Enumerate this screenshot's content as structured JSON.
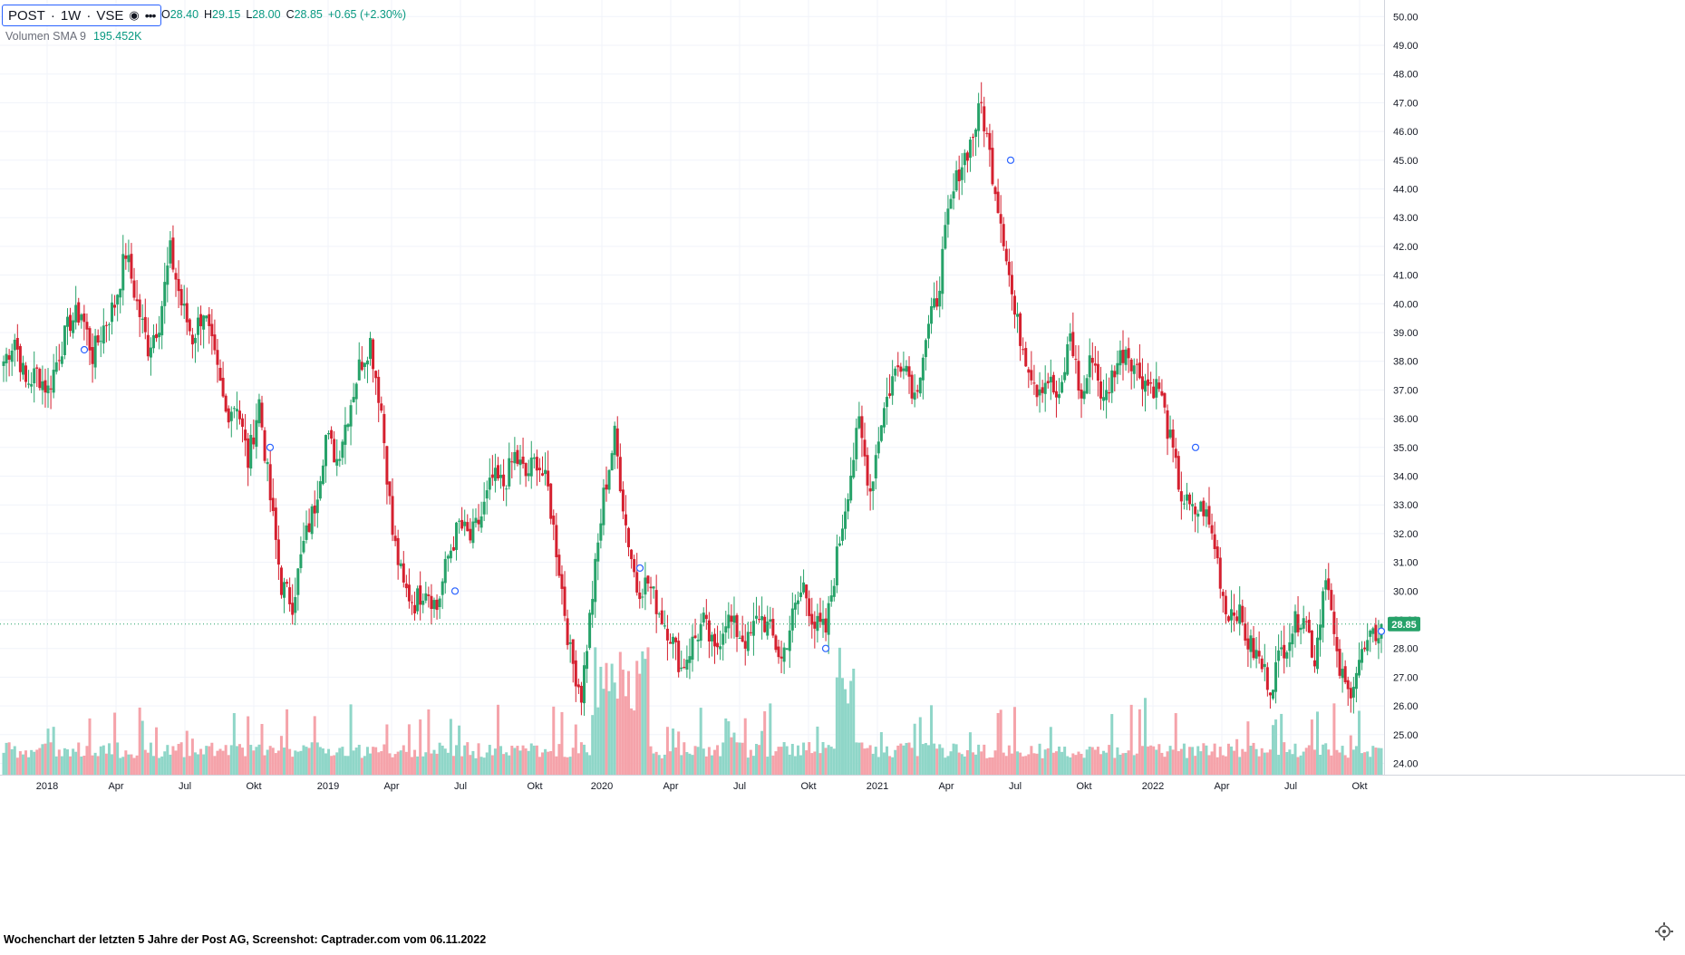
{
  "header": {
    "symbol": "POST",
    "interval": "1W",
    "exchange": "VSE",
    "open": "28.40",
    "high": "29.15",
    "low": "28.00",
    "close": "28.85",
    "change": "+0.65 (+2.30%)",
    "eye_icon": "eye-icon",
    "more_icon": "more-icon"
  },
  "volume_legend": {
    "label": "Volumen SMA 9",
    "value": "195.452K"
  },
  "caption": "Wochenchart der letzten 5 Jahre der Post AG, Screenshot: Captrader.com vom 06.11.2022",
  "colors": {
    "up": "#26a269",
    "down": "#d5202f",
    "vol_up": "#8fd6c8",
    "vol_down": "#f5a3aa",
    "price_tag": "#26a269"
  },
  "chart_data": {
    "type": "candlestick",
    "title": "",
    "y_axis": {
      "min": 24,
      "max": 50,
      "ticks": [
        "24.00",
        "25.00",
        "26.00",
        "27.00",
        "28.00",
        "29.00",
        "30.00",
        "31.00",
        "32.00",
        "33.00",
        "34.00",
        "35.00",
        "36.00",
        "37.00",
        "38.00",
        "39.00",
        "40.00",
        "41.00",
        "42.00",
        "43.00",
        "44.00",
        "45.00",
        "46.00",
        "47.00",
        "48.00",
        "49.00",
        "50.00"
      ],
      "position": "right"
    },
    "x_axis": {
      "labels": [
        "2018",
        "Apr",
        "Jul",
        "Okt",
        "2019",
        "Apr",
        "Jul",
        "Okt",
        "2020",
        "Apr",
        "Jul",
        "Okt",
        "2021",
        "Apr",
        "Jul",
        "Okt",
        "2022",
        "Apr",
        "Jul",
        "Okt"
      ]
    },
    "grid": true,
    "last_price": "28.85",
    "close_path": [
      38.0,
      38.8,
      37.2,
      37.6,
      37.0,
      38.3,
      39.4,
      39.7,
      38.2,
      39.2,
      40.0,
      41.8,
      40.0,
      38.5,
      39.4,
      41.8,
      40.0,
      38.8,
      39.8,
      38.0,
      36.2,
      36.6,
      34.5,
      36.6,
      33.2,
      30.2,
      29.6,
      31.6,
      33.0,
      35.4,
      34.6,
      36.2,
      37.8,
      38.7,
      36.3,
      32.0,
      30.1,
      29.6,
      30.2,
      29.4,
      31.2,
      32.3,
      31.8,
      32.6,
      33.9,
      33.7,
      34.7,
      34.0,
      34.6,
      33.5,
      30.8,
      27.8,
      26.4,
      29.9,
      33.3,
      35.4,
      32.3,
      30.1,
      30.3,
      29.3,
      28.5,
      27.3,
      28.2,
      28.9,
      27.8,
      29.1,
      28.6,
      28.2,
      29.2,
      28.6,
      27.6,
      29.1,
      30.2,
      28.8,
      28.6,
      31.2,
      33.6,
      35.8,
      33.5,
      36.0,
      37.4,
      38.2,
      36.8,
      38.8,
      40.2,
      43.0,
      44.7,
      45.6,
      46.9,
      44.6,
      42.4,
      39.6,
      38.2,
      37.1,
      37.4,
      36.5,
      39.0,
      36.6,
      38.3,
      36.5,
      37.8,
      38.5,
      37.7,
      37.2,
      37.1,
      35.2,
      33.3,
      32.7,
      32.9,
      31.6,
      29.3,
      29.4,
      28.2,
      27.6,
      26.7,
      27.9,
      28.7,
      29.3,
      27.6,
      30.8,
      27.5,
      26.4,
      27.6,
      28.2,
      28.8
    ],
    "volume": {
      "series_name": "Volumen SMA 9",
      "value": "195.452K"
    }
  }
}
